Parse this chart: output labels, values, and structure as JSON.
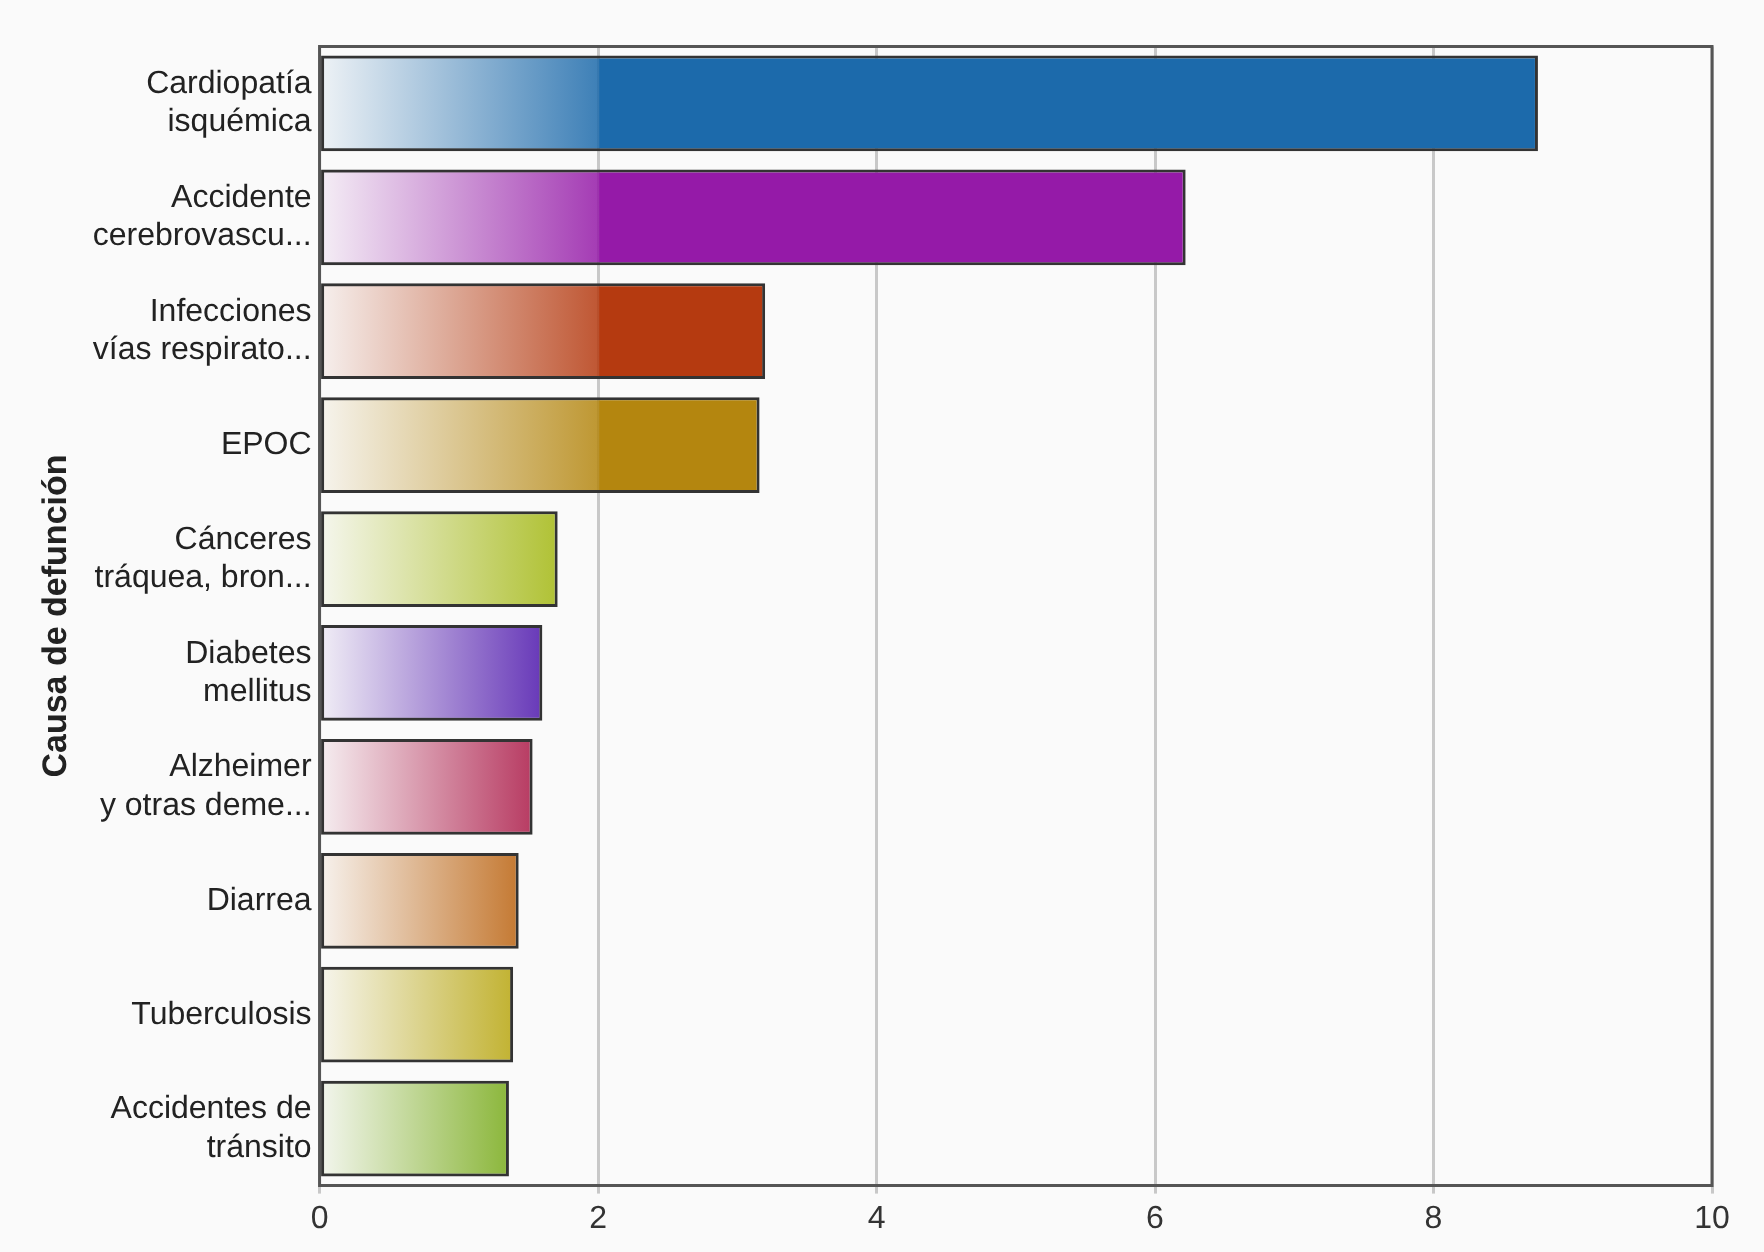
{
  "chart_data": {
    "type": "bar",
    "orientation": "horizontal",
    "ylabel": "Causa de defunción",
    "categories": [
      "Cardiopatía\nisquémica",
      "Accidente\ncerebrovascu...",
      "Infecciones\nvías respirato...",
      "EPOC",
      "Cánceres\ntráquea, bron...",
      "Diabetes\nmellitus",
      "Alzheimer\ny otras deme...",
      "Diarrea",
      "Tuberculosis",
      "Accidentes de\ntránsito"
    ],
    "values": [
      8.75,
      6.22,
      3.2,
      3.16,
      1.71,
      1.6,
      1.53,
      1.43,
      1.39,
      1.36
    ],
    "colors": [
      "#1c6aab",
      "#951aa8",
      "#b53a10",
      "#b4860f",
      "#a3b812",
      "#4e17ad",
      "#ac1a48",
      "#bb6310",
      "#b8a60f",
      "#78ab1a"
    ],
    "xlim": [
      0,
      10
    ],
    "xticks": [
      0,
      2,
      4,
      6,
      8,
      10
    ],
    "grid": "x",
    "legend": false
  }
}
